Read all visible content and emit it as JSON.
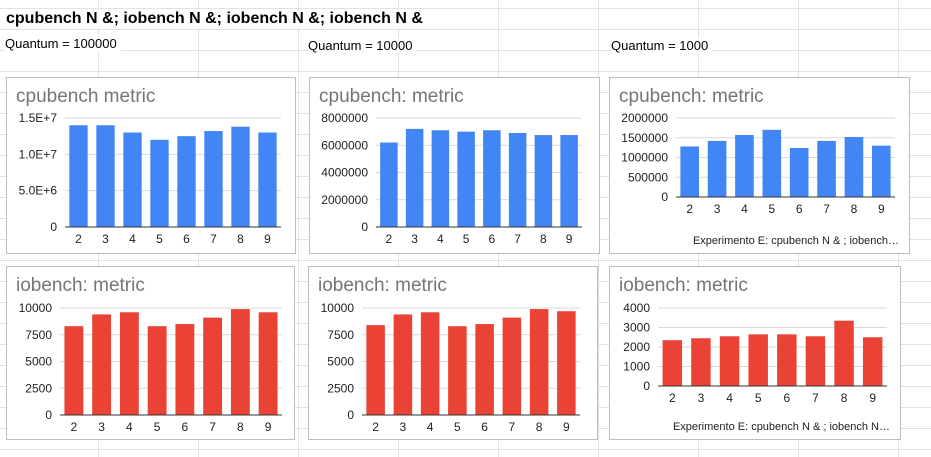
{
  "sheet": {
    "title": "cpubench N &; iobench N &; iobench N &; iobench N &",
    "quantum_labels": [
      "Quantum = 100000",
      "Quantum = 10000",
      "Quantum = 1000"
    ]
  },
  "chart_data": [
    {
      "type": "bar",
      "title": "cpubench metric",
      "color": "#4285f4",
      "categories": [
        "2",
        "3",
        "4",
        "5",
        "6",
        "7",
        "8",
        "9"
      ],
      "values": [
        14000000,
        14000000,
        13000000,
        12000000,
        12500000,
        13200000,
        13800000,
        13000000
      ],
      "ylim": [
        0,
        15000000
      ],
      "yticks": [
        0,
        5000000,
        10000000,
        15000000
      ],
      "ytick_labels": [
        "0",
        "5.0E+6",
        "1.0E+7",
        "1.5E+7"
      ],
      "footer": ""
    },
    {
      "type": "bar",
      "title": "cpubench: metric",
      "color": "#4285f4",
      "categories": [
        "2",
        "3",
        "4",
        "5",
        "6",
        "7",
        "8",
        "9"
      ],
      "values": [
        6200000,
        7200000,
        7100000,
        7000000,
        7100000,
        6900000,
        6750000,
        6750000
      ],
      "ylim": [
        0,
        8000000
      ],
      "yticks": [
        0,
        2000000,
        4000000,
        6000000,
        8000000
      ],
      "ytick_labels": [
        "0",
        "2000000",
        "4000000",
        "6000000",
        "8000000"
      ],
      "footer": ""
    },
    {
      "type": "bar",
      "title": "cpubench: metric",
      "color": "#4285f4",
      "categories": [
        "2",
        "3",
        "4",
        "5",
        "6",
        "7",
        "8",
        "9"
      ],
      "values": [
        1280000,
        1420000,
        1570000,
        1700000,
        1240000,
        1420000,
        1520000,
        1300000
      ],
      "ylim": [
        0,
        2000000
      ],
      "yticks": [
        0,
        500000,
        1000000,
        1500000,
        2000000
      ],
      "ytick_labels": [
        "0",
        "500000",
        "1000000",
        "1500000",
        "2000000"
      ],
      "footer": "Experimento E: cpubench N & ; iobench…"
    },
    {
      "type": "bar",
      "title": "iobench: metric",
      "color": "#ea4335",
      "categories": [
        "2",
        "3",
        "4",
        "5",
        "6",
        "7",
        "8",
        "9"
      ],
      "values": [
        8300,
        9400,
        9600,
        8300,
        8500,
        9100,
        9900,
        9600
      ],
      "ylim": [
        0,
        10000
      ],
      "yticks": [
        0,
        2500,
        5000,
        7500,
        10000
      ],
      "ytick_labels": [
        "0",
        "2500",
        "5000",
        "7500",
        "10000"
      ],
      "footer": ""
    },
    {
      "type": "bar",
      "title": "iobench: metric",
      "color": "#ea4335",
      "categories": [
        "2",
        "3",
        "4",
        "5",
        "6",
        "7",
        "8",
        "9"
      ],
      "values": [
        8400,
        9400,
        9600,
        8300,
        8500,
        9100,
        9900,
        9700
      ],
      "ylim": [
        0,
        10000
      ],
      "yticks": [
        0,
        2500,
        5000,
        7500,
        10000
      ],
      "ytick_labels": [
        "0",
        "2500",
        "5000",
        "7500",
        "10000"
      ],
      "footer": ""
    },
    {
      "type": "bar",
      "title": "iobench: metric",
      "color": "#ea4335",
      "categories": [
        "2",
        "3",
        "4",
        "5",
        "6",
        "7",
        "8",
        "9"
      ],
      "values": [
        2350,
        2450,
        2550,
        2650,
        2650,
        2550,
        3350,
        2500
      ],
      "ylim": [
        0,
        4000
      ],
      "yticks": [
        0,
        1000,
        2000,
        3000,
        4000
      ],
      "ytick_labels": [
        "0",
        "1000",
        "2000",
        "3000",
        "4000"
      ],
      "footer": "Experimento E: cpubench N & ; iobench N…"
    }
  ]
}
